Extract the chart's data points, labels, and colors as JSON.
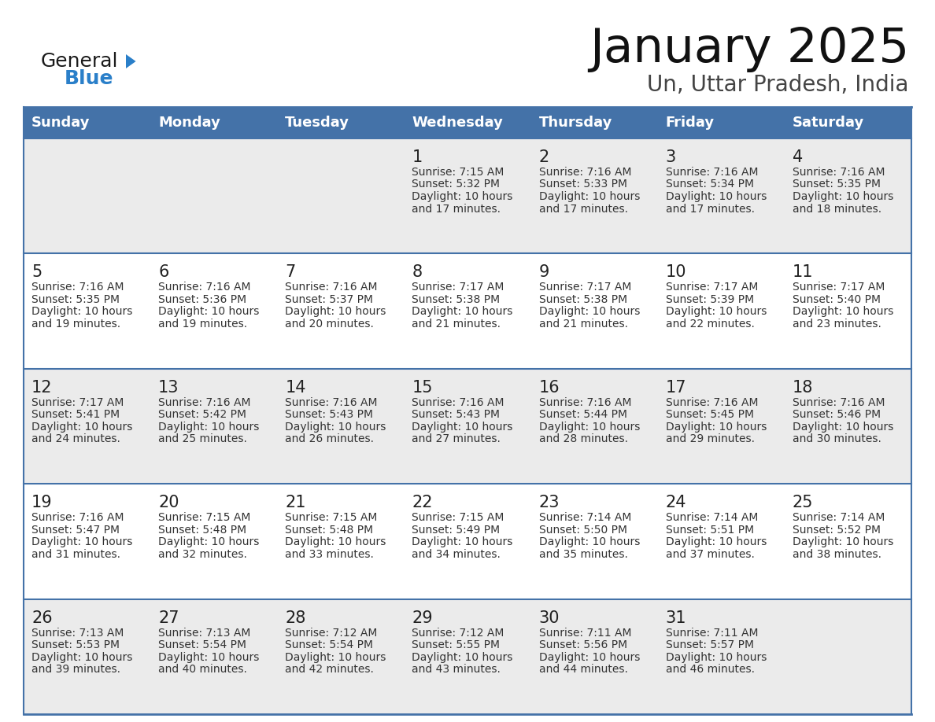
{
  "title": "January 2025",
  "subtitle": "Un, Uttar Pradesh, India",
  "header_bg": "#4472a8",
  "header_text": "#ffffff",
  "day_names": [
    "Sunday",
    "Monday",
    "Tuesday",
    "Wednesday",
    "Thursday",
    "Friday",
    "Saturday"
  ],
  "row_bg_gray": "#ebebeb",
  "row_bg_white": "#ffffff",
  "divider_color": "#4472a8",
  "cell_text_color": "#333333",
  "day_num_color": "#222222",
  "general_black": "#1a1a1a",
  "general_blue": "#2a7fc9",
  "calendar_data": [
    [
      null,
      null,
      null,
      {
        "day": 1,
        "sunrise": "7:15 AM",
        "sunset": "5:32 PM",
        "daylight": "10 hours and 17 minutes."
      },
      {
        "day": 2,
        "sunrise": "7:16 AM",
        "sunset": "5:33 PM",
        "daylight": "10 hours and 17 minutes."
      },
      {
        "day": 3,
        "sunrise": "7:16 AM",
        "sunset": "5:34 PM",
        "daylight": "10 hours and 17 minutes."
      },
      {
        "day": 4,
        "sunrise": "7:16 AM",
        "sunset": "5:35 PM",
        "daylight": "10 hours and 18 minutes."
      }
    ],
    [
      {
        "day": 5,
        "sunrise": "7:16 AM",
        "sunset": "5:35 PM",
        "daylight": "10 hours and 19 minutes."
      },
      {
        "day": 6,
        "sunrise": "7:16 AM",
        "sunset": "5:36 PM",
        "daylight": "10 hours and 19 minutes."
      },
      {
        "day": 7,
        "sunrise": "7:16 AM",
        "sunset": "5:37 PM",
        "daylight": "10 hours and 20 minutes."
      },
      {
        "day": 8,
        "sunrise": "7:17 AM",
        "sunset": "5:38 PM",
        "daylight": "10 hours and 21 minutes."
      },
      {
        "day": 9,
        "sunrise": "7:17 AM",
        "sunset": "5:38 PM",
        "daylight": "10 hours and 21 minutes."
      },
      {
        "day": 10,
        "sunrise": "7:17 AM",
        "sunset": "5:39 PM",
        "daylight": "10 hours and 22 minutes."
      },
      {
        "day": 11,
        "sunrise": "7:17 AM",
        "sunset": "5:40 PM",
        "daylight": "10 hours and 23 minutes."
      }
    ],
    [
      {
        "day": 12,
        "sunrise": "7:17 AM",
        "sunset": "5:41 PM",
        "daylight": "10 hours and 24 minutes."
      },
      {
        "day": 13,
        "sunrise": "7:16 AM",
        "sunset": "5:42 PM",
        "daylight": "10 hours and 25 minutes."
      },
      {
        "day": 14,
        "sunrise": "7:16 AM",
        "sunset": "5:43 PM",
        "daylight": "10 hours and 26 minutes."
      },
      {
        "day": 15,
        "sunrise": "7:16 AM",
        "sunset": "5:43 PM",
        "daylight": "10 hours and 27 minutes."
      },
      {
        "day": 16,
        "sunrise": "7:16 AM",
        "sunset": "5:44 PM",
        "daylight": "10 hours and 28 minutes."
      },
      {
        "day": 17,
        "sunrise": "7:16 AM",
        "sunset": "5:45 PM",
        "daylight": "10 hours and 29 minutes."
      },
      {
        "day": 18,
        "sunrise": "7:16 AM",
        "sunset": "5:46 PM",
        "daylight": "10 hours and 30 minutes."
      }
    ],
    [
      {
        "day": 19,
        "sunrise": "7:16 AM",
        "sunset": "5:47 PM",
        "daylight": "10 hours and 31 minutes."
      },
      {
        "day": 20,
        "sunrise": "7:15 AM",
        "sunset": "5:48 PM",
        "daylight": "10 hours and 32 minutes."
      },
      {
        "day": 21,
        "sunrise": "7:15 AM",
        "sunset": "5:48 PM",
        "daylight": "10 hours and 33 minutes."
      },
      {
        "day": 22,
        "sunrise": "7:15 AM",
        "sunset": "5:49 PM",
        "daylight": "10 hours and 34 minutes."
      },
      {
        "day": 23,
        "sunrise": "7:14 AM",
        "sunset": "5:50 PM",
        "daylight": "10 hours and 35 minutes."
      },
      {
        "day": 24,
        "sunrise": "7:14 AM",
        "sunset": "5:51 PM",
        "daylight": "10 hours and 37 minutes."
      },
      {
        "day": 25,
        "sunrise": "7:14 AM",
        "sunset": "5:52 PM",
        "daylight": "10 hours and 38 minutes."
      }
    ],
    [
      {
        "day": 26,
        "sunrise": "7:13 AM",
        "sunset": "5:53 PM",
        "daylight": "10 hours and 39 minutes."
      },
      {
        "day": 27,
        "sunrise": "7:13 AM",
        "sunset": "5:54 PM",
        "daylight": "10 hours and 40 minutes."
      },
      {
        "day": 28,
        "sunrise": "7:12 AM",
        "sunset": "5:54 PM",
        "daylight": "10 hours and 42 minutes."
      },
      {
        "day": 29,
        "sunrise": "7:12 AM",
        "sunset": "5:55 PM",
        "daylight": "10 hours and 43 minutes."
      },
      {
        "day": 30,
        "sunrise": "7:11 AM",
        "sunset": "5:56 PM",
        "daylight": "10 hours and 44 minutes."
      },
      {
        "day": 31,
        "sunrise": "7:11 AM",
        "sunset": "5:57 PM",
        "daylight": "10 hours and 46 minutes."
      },
      null
    ]
  ]
}
